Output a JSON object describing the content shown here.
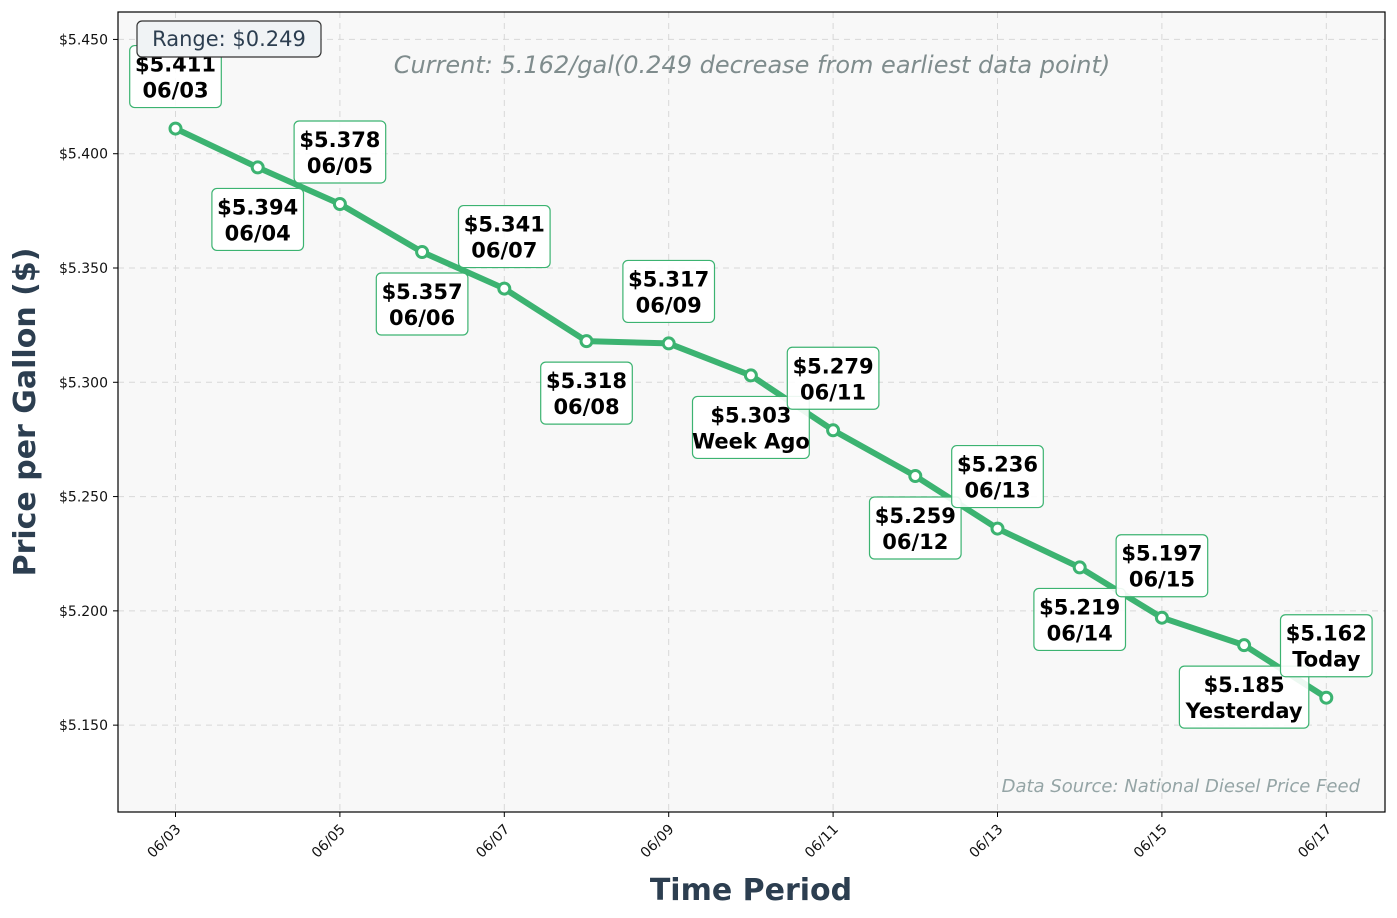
{
  "chart_data": {
    "type": "line",
    "title": "",
    "subtitle": "Current: 5.162/gal(0.249 decrease from earliest data point)",
    "xlabel": "Time Period",
    "ylabel": "Price per Gallon ($)",
    "ylim": [
      5.112,
      5.462
    ],
    "yticks": [
      5.15,
      5.2,
      5.25,
      5.3,
      5.35,
      5.4,
      5.45
    ],
    "ytick_labels": [
      "$5.150",
      "$5.200",
      "$5.250",
      "$5.300",
      "$5.350",
      "$5.400",
      "$5.450"
    ],
    "xticks": [
      "06/03",
      "06/05",
      "06/07",
      "06/09",
      "06/11",
      "06/13",
      "06/15",
      "06/17"
    ],
    "grid": true,
    "line_color": "#3cb371",
    "range_label": "Range: $0.249",
    "source_note": "Data Source: National Diesel Price Feed",
    "points": [
      {
        "x": "06/03",
        "y": 5.411,
        "price": "$5.411",
        "label": "06/03",
        "place": "above"
      },
      {
        "x": "06/04",
        "y": 5.394,
        "price": "$5.394",
        "label": "06/04",
        "place": "below"
      },
      {
        "x": "06/05",
        "y": 5.378,
        "price": "$5.378",
        "label": "06/05",
        "place": "above"
      },
      {
        "x": "06/06",
        "y": 5.357,
        "price": "$5.357",
        "label": "06/06",
        "place": "below"
      },
      {
        "x": "06/07",
        "y": 5.341,
        "price": "$5.341",
        "label": "06/07",
        "place": "above"
      },
      {
        "x": "06/08",
        "y": 5.318,
        "price": "$5.318",
        "label": "06/08",
        "place": "below"
      },
      {
        "x": "06/09",
        "y": 5.317,
        "price": "$5.317",
        "label": "06/09",
        "place": "above"
      },
      {
        "x": "06/10",
        "y": 5.303,
        "price": "$5.303",
        "label": "Week Ago",
        "place": "below"
      },
      {
        "x": "06/11",
        "y": 5.279,
        "price": "$5.279",
        "label": "06/11",
        "place": "above"
      },
      {
        "x": "06/12",
        "y": 5.259,
        "price": "$5.259",
        "label": "06/12",
        "place": "below"
      },
      {
        "x": "06/13",
        "y": 5.236,
        "price": "$5.236",
        "label": "06/13",
        "place": "above"
      },
      {
        "x": "06/14",
        "y": 5.219,
        "price": "$5.219",
        "label": "06/14",
        "place": "below"
      },
      {
        "x": "06/15",
        "y": 5.197,
        "price": "$5.197",
        "label": "06/15",
        "place": "above"
      },
      {
        "x": "06/16",
        "y": 5.185,
        "price": "$5.185",
        "label": "Yesterday",
        "place": "below"
      },
      {
        "x": "06/17",
        "y": 5.162,
        "price": "$5.162",
        "label": "Today",
        "place": "above"
      }
    ]
  }
}
